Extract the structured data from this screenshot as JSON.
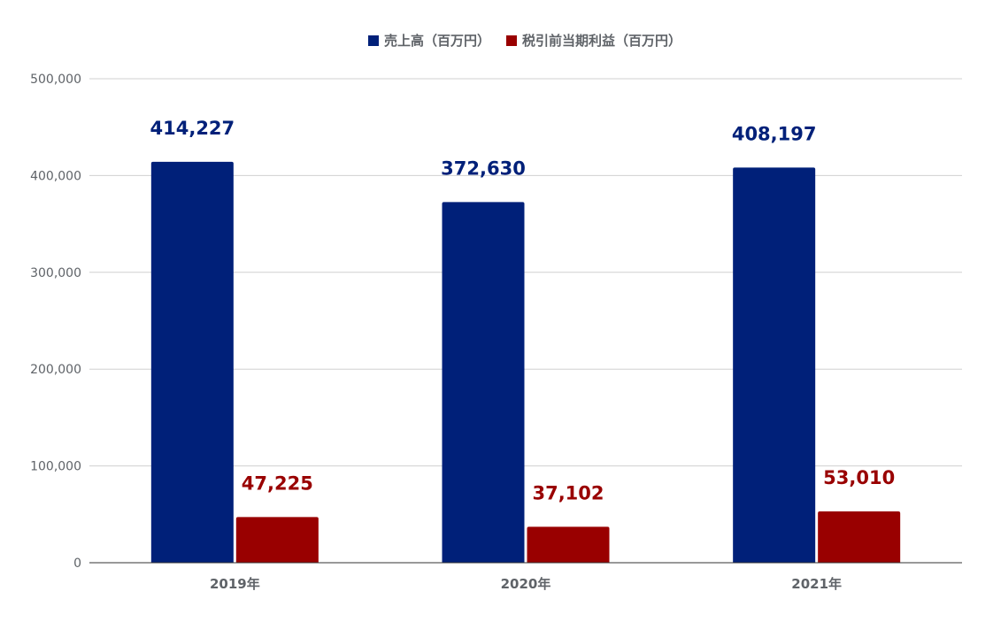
{
  "chart_data": {
    "type": "bar",
    "categories": [
      "2019年",
      "2020年",
      "2021年"
    ],
    "series": [
      {
        "name": "売上高（百万円）",
        "color": "#002079",
        "values": [
          414227,
          372630,
          408197
        ],
        "labels": [
          "414,227",
          "372,630",
          "408,197"
        ]
      },
      {
        "name": "税引前当期利益（百万円）",
        "color": "#990000",
        "values": [
          47225,
          37102,
          53010
        ],
        "labels": [
          "47,225",
          "37,102",
          "53,010"
        ]
      }
    ],
    "ylim": [
      0,
      500000
    ],
    "yticks": [
      0,
      100000,
      200000,
      300000,
      400000,
      500000
    ],
    "ytick_labels": [
      "0",
      "100,000",
      "200,000",
      "300,000",
      "400,000",
      "500,000"
    ],
    "grid": true,
    "legend_position": "top"
  }
}
